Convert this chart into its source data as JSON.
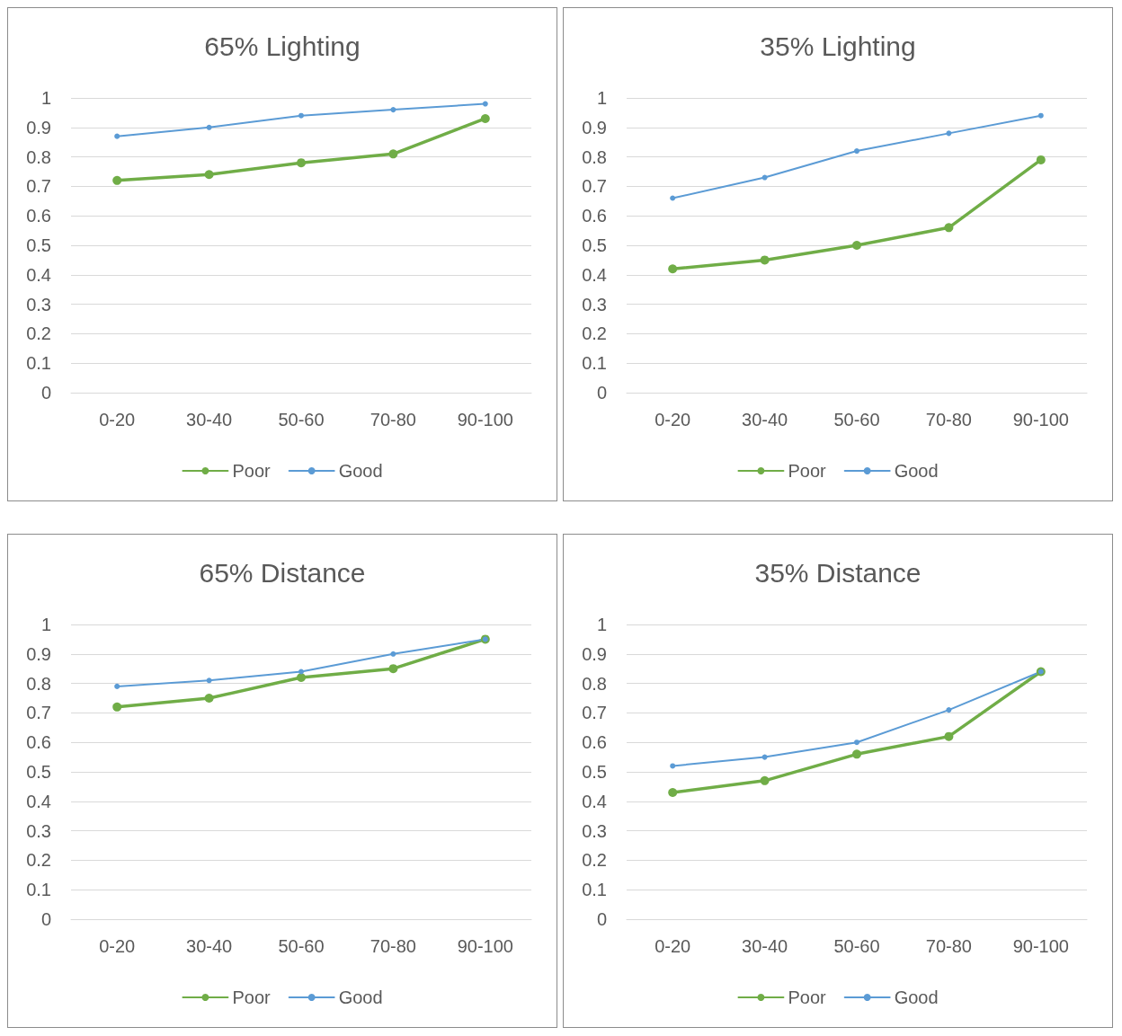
{
  "chart_data": [
    {
      "type": "line",
      "title": "65% Lighting",
      "categories": [
        "0-20",
        "30-40",
        "50-60",
        "70-80",
        "90-100"
      ],
      "series": [
        {
          "name": "Poor",
          "color": "#70ad47",
          "values": [
            0.72,
            0.74,
            0.78,
            0.81,
            0.93
          ]
        },
        {
          "name": "Good",
          "color": "#5b9bd5",
          "values": [
            0.87,
            0.9,
            0.94,
            0.96,
            0.98
          ]
        }
      ],
      "ylim": [
        0,
        1
      ],
      "yticks": [
        0,
        0.1,
        0.2,
        0.3,
        0.4,
        0.5,
        0.6,
        0.7,
        0.8,
        0.9,
        1
      ],
      "grid": "y",
      "legend": "bottom",
      "marker": "circle",
      "line_style": "solid"
    },
    {
      "type": "line",
      "title": "35% Lighting",
      "categories": [
        "0-20",
        "30-40",
        "50-60",
        "70-80",
        "90-100"
      ],
      "series": [
        {
          "name": "Poor",
          "color": "#70ad47",
          "values": [
            0.42,
            0.45,
            0.5,
            0.56,
            0.79
          ]
        },
        {
          "name": "Good",
          "color": "#5b9bd5",
          "values": [
            0.66,
            0.73,
            0.82,
            0.88,
            0.94
          ]
        }
      ],
      "ylim": [
        0,
        1
      ],
      "yticks": [
        0,
        0.1,
        0.2,
        0.3,
        0.4,
        0.5,
        0.6,
        0.7,
        0.8,
        0.9,
        1
      ],
      "grid": "y",
      "legend": "bottom",
      "marker": "circle",
      "line_style": "solid"
    },
    {
      "type": "line",
      "title": "65% Distance",
      "categories": [
        "0-20",
        "30-40",
        "50-60",
        "70-80",
        "90-100"
      ],
      "series": [
        {
          "name": "Poor",
          "color": "#70ad47",
          "values": [
            0.72,
            0.75,
            0.82,
            0.85,
            0.95
          ]
        },
        {
          "name": "Good",
          "color": "#5b9bd5",
          "values": [
            0.79,
            0.81,
            0.84,
            0.9,
            0.95
          ]
        }
      ],
      "ylim": [
        0,
        1
      ],
      "yticks": [
        0,
        0.1,
        0.2,
        0.3,
        0.4,
        0.5,
        0.6,
        0.7,
        0.8,
        0.9,
        1
      ],
      "grid": "y",
      "legend": "bottom",
      "marker": "circle",
      "line_style": "solid"
    },
    {
      "type": "line",
      "title": "35% Distance",
      "categories": [
        "0-20",
        "30-40",
        "50-60",
        "70-80",
        "90-100"
      ],
      "series": [
        {
          "name": "Poor",
          "color": "#70ad47",
          "values": [
            0.43,
            0.47,
            0.56,
            0.62,
            0.84
          ]
        },
        {
          "name": "Good",
          "color": "#5b9bd5",
          "values": [
            0.52,
            0.55,
            0.6,
            0.71,
            0.84
          ]
        }
      ],
      "ylim": [
        0,
        1
      ],
      "yticks": [
        0,
        0.1,
        0.2,
        0.3,
        0.4,
        0.5,
        0.6,
        0.7,
        0.8,
        0.9,
        1
      ],
      "grid": "y",
      "legend": "bottom",
      "marker": "circle",
      "line_style": "solid"
    }
  ]
}
